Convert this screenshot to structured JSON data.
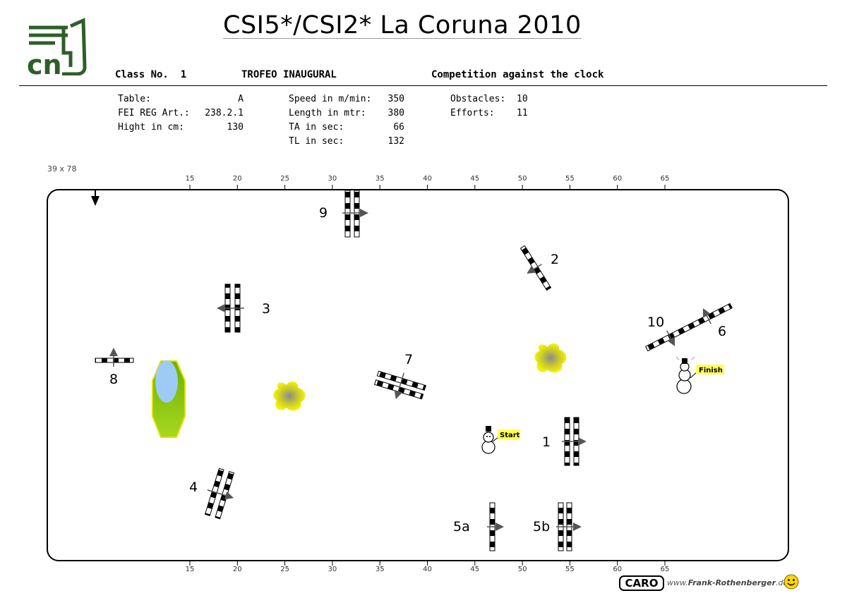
{
  "title": "CSI5*/CSI2* La Coruna 2010",
  "logo_text": "cn",
  "header": {
    "class_label": "Class No.",
    "class_number": "1",
    "class_name": "TROFEO INAUGURAL",
    "competition": "Competition against the clock"
  },
  "info": {
    "col1": [
      {
        "label": "Table:",
        "value": "A"
      },
      {
        "label": "FEI REG Art.:",
        "value": "238.2.1"
      },
      {
        "label": "Hight in cm:",
        "value": "130"
      }
    ],
    "col2": [
      {
        "label": "Speed in m/min:",
        "value": "350"
      },
      {
        "label": "Length in mtr:",
        "value": "380"
      },
      {
        "label": "TA in sec:",
        "value": "66"
      },
      {
        "label": "TL in sec:",
        "value": "132"
      }
    ],
    "col3": [
      {
        "label": "Obstacles:",
        "value": "10"
      },
      {
        "label": "Efforts:",
        "value": "11"
      }
    ]
  },
  "arena_size": "39 x 78",
  "ruler_ticks": [
    "15",
    "20",
    "25",
    "30",
    "35",
    "40",
    "45",
    "50",
    "55",
    "60",
    "65"
  ],
  "obstacles": [
    {
      "label": "1"
    },
    {
      "label": "2"
    },
    {
      "label": "3"
    },
    {
      "label": "4"
    },
    {
      "label": "5a"
    },
    {
      "label": "5b"
    },
    {
      "label": "6"
    },
    {
      "label": "7"
    },
    {
      "label": "8"
    },
    {
      "label": "9"
    },
    {
      "label": "10"
    }
  ],
  "start_label": "Start",
  "finish_label": "Finish",
  "footer": {
    "brand": "CARO",
    "url_prefix": "www.",
    "url_name": "Frank-Rothenberger",
    "url_suffix": ".de"
  },
  "colors": {
    "logo_green": "#2e5e2a",
    "flower_yellow": "#e8e800",
    "water_blue": "#9ecbf5",
    "grass_green": "#8cc800",
    "label_yellow": "#ffff55"
  }
}
